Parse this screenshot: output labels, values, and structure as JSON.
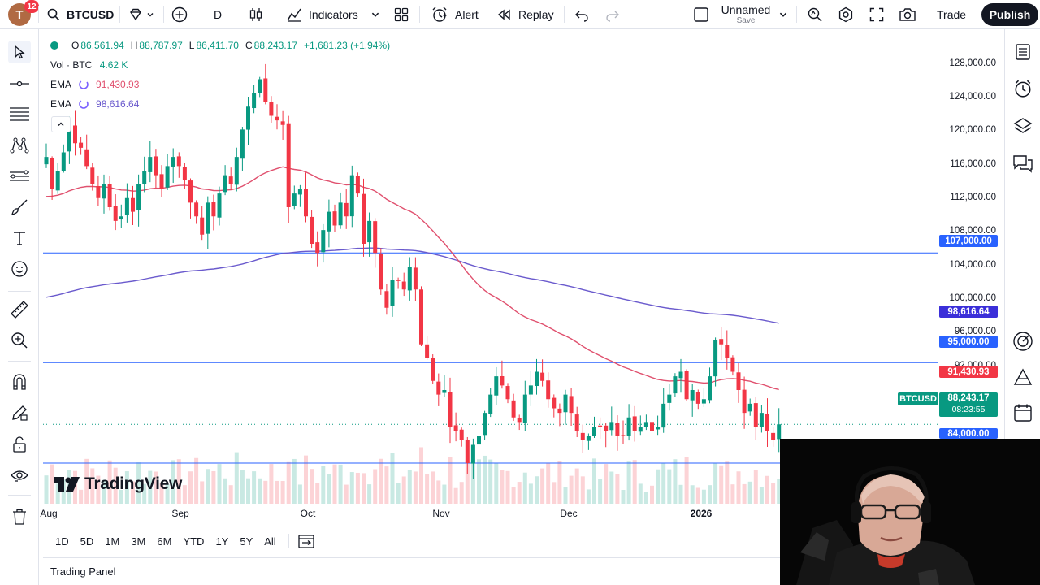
{
  "topbar": {
    "avatar_letter": "T",
    "notifications": "12",
    "symbol": "BTCUSD",
    "interval": "D",
    "indicators_label": "Indicators",
    "alert_label": "Alert",
    "replay_label": "Replay",
    "layout_name": "Unnamed",
    "layout_status": "Save",
    "trade_label": "Trade",
    "publish_label": "Publish"
  },
  "legend": {
    "ohlc": {
      "o_label": "O",
      "o": "86,561.94",
      "h_label": "H",
      "h": "88,787.97",
      "l_label": "L",
      "l": "86,411.70",
      "c_label": "C",
      "c": "88,243.17",
      "change": "+1,681.23 (+1.94%)"
    },
    "volume": {
      "label": "Vol · BTC",
      "value": "4.62 K"
    },
    "ema_fast": {
      "label": "EMA",
      "value": "91,430.93",
      "color": "#e0506e"
    },
    "ema_slow": {
      "label": "EMA",
      "value": "98,616.64",
      "color": "#6a5acd"
    }
  },
  "price_axis": {
    "ticks": [
      "128,000.00",
      "124,000.00",
      "120,000.00",
      "116,000.00",
      "112,000.00",
      "108,000.00",
      "104,000.00",
      "100,000.00",
      "96,000.00",
      "92,000.00"
    ],
    "tags": {
      "level_107": "107,000.00",
      "ema_slow": "98,616.64",
      "level_95": "95,000.00",
      "ema_fast": "91,430.93",
      "symbol": "BTCUSD",
      "last_price": "88,243.17",
      "countdown": "08:23:55",
      "level_84": "84,000.00"
    }
  },
  "time_axis": [
    "Aug",
    "Sep",
    "Oct",
    "Nov",
    "Dec",
    "2026"
  ],
  "watermark": "TradingView",
  "ranges": [
    "1D",
    "5D",
    "1M",
    "3M",
    "6M",
    "YTD",
    "1Y",
    "5Y",
    "All"
  ],
  "trading_panel_label": "Trading Panel",
  "colors": {
    "up": "#089981",
    "down": "#f23645",
    "hline": "#2962ff",
    "ema_fast": "#e0506e",
    "ema_slow": "#6a5acd"
  },
  "chart_data": {
    "type": "candlestick",
    "symbol": "BTCUSD",
    "interval": "D",
    "price_range": [
      83000,
      129000
    ],
    "horizontal_lines": [
      107000,
      95000,
      84000
    ],
    "last_close": 88243.17,
    "closes_approx": [
      117500,
      114000,
      116000,
      118000,
      121000,
      119000,
      118500,
      116500,
      114500,
      113000,
      114500,
      112000,
      110500,
      111000,
      113000,
      111500,
      114500,
      116000,
      117500,
      115500,
      114000,
      116500,
      117500,
      116500,
      115000,
      112500,
      111000,
      109000,
      112500,
      111000,
      113500,
      115500,
      114500,
      117500,
      120500,
      123000,
      124500,
      126000,
      123500,
      122000,
      121500,
      121000,
      112000,
      113500,
      114000,
      111000,
      108000,
      107000,
      109500,
      111500,
      110000,
      112500,
      111000,
      115500,
      113500,
      108000,
      110500,
      107000,
      103000,
      101000,
      104000,
      104000,
      103000,
      105500,
      103000,
      97000,
      95500,
      93000,
      91500,
      92000,
      88000,
      87500,
      86500,
      84000,
      86000,
      87000,
      89500,
      91500,
      93500,
      92500,
      91000,
      89000,
      88500,
      91500,
      92500,
      94000,
      93000,
      91000,
      90000,
      89500,
      91500,
      89500,
      87500,
      86500,
      87000,
      88000,
      88000,
      87500,
      88500,
      87000,
      87000,
      89000,
      87500,
      88000,
      88500,
      87500,
      88000,
      90500,
      91500,
      93500,
      94000,
      91000,
      92000,
      90500,
      91000,
      93500,
      97500,
      97000,
      95500,
      94000,
      92000,
      89500,
      90500,
      88000,
      89500,
      87500,
      86500,
      88243
    ]
  }
}
